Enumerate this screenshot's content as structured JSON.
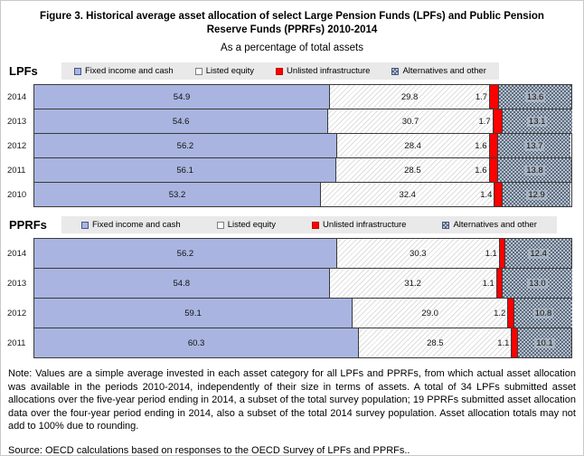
{
  "figure": {
    "title": "Figure 3.  Historical average asset allocation of select Large Pension Funds (LPFs) and Public Pension Reserve Funds (PPRFs) 2010-2014",
    "subtitle": "As a percentage of total assets",
    "note": "Note: Values are a simple average invested in each asset category for all LPFs and PPRFs, from which actual asset allocation was available in the periods 2010-2014, independently of their size in terms of assets. A total of 34 LPFs submitted asset allocations over the five-year period ending in 2014, a subset of the total survey population; 19 PPRFs submitted asset allocation data over the four-year period ending in 2014, also a subset of the total 2014 survey population. Asset allocation totals may not add to 100% due to rounding.",
    "source": "Source: OECD calculations based on responses to the OECD Survey of LPFs and PPRFs.."
  },
  "sections": [
    {
      "label": "LPFs"
    },
    {
      "label": "PPRFs"
    }
  ],
  "legend": {
    "items": [
      {
        "label": "Fixed income and cash",
        "key": "fixed",
        "color": "#a9b5e0",
        "pattern": "solid"
      },
      {
        "label": "Listed equity",
        "key": "listed",
        "color": "#ffffff",
        "pattern": "diagonal-hatch"
      },
      {
        "label": "Unlisted infrastructure",
        "key": "unlisted",
        "color": "#ff0000",
        "pattern": "solid"
      },
      {
        "label": "Alternatives and other",
        "key": "alt",
        "color": "#b6c0ce",
        "pattern": "checker",
        "checker_dark": "#5c6b7d"
      }
    ]
  },
  "chart_data": [
    {
      "type": "bar",
      "orientation": "horizontal",
      "stacked": true,
      "group": "LPFs",
      "xlim": [
        0,
        100
      ],
      "unit": "percent",
      "categories": [
        "2014",
        "2013",
        "2012",
        "2011",
        "2010"
      ],
      "series": [
        {
          "name": "Fixed income and cash",
          "key": "fixed",
          "values": [
            54.9,
            54.6,
            56.2,
            56.1,
            53.2
          ]
        },
        {
          "name": "Listed equity",
          "key": "listed",
          "values": [
            29.8,
            30.7,
            28.4,
            28.5,
            32.4
          ]
        },
        {
          "name": "Unlisted infrastructure",
          "key": "unlisted",
          "values": [
            1.7,
            1.7,
            1.6,
            1.6,
            1.4
          ]
        },
        {
          "name": "Alternatives and other",
          "key": "alt",
          "values": [
            13.6,
            13.1,
            13.7,
            13.8,
            12.9
          ]
        }
      ]
    },
    {
      "type": "bar",
      "orientation": "horizontal",
      "stacked": true,
      "group": "PPRFs",
      "xlim": [
        0,
        100
      ],
      "unit": "percent",
      "categories": [
        "2014",
        "2013",
        "2012",
        "2011"
      ],
      "series": [
        {
          "name": "Fixed income and cash",
          "key": "fixed",
          "values": [
            56.2,
            54.8,
            59.1,
            60.3
          ]
        },
        {
          "name": "Listed equity",
          "key": "listed",
          "values": [
            30.3,
            31.2,
            29.0,
            28.5
          ]
        },
        {
          "name": "Unlisted infrastructure",
          "key": "unlisted",
          "values": [
            1.1,
            1.1,
            1.2,
            1.1
          ]
        },
        {
          "name": "Alternatives and other",
          "key": "alt",
          "values": [
            12.4,
            13.0,
            10.8,
            10.1
          ]
        }
      ]
    }
  ]
}
